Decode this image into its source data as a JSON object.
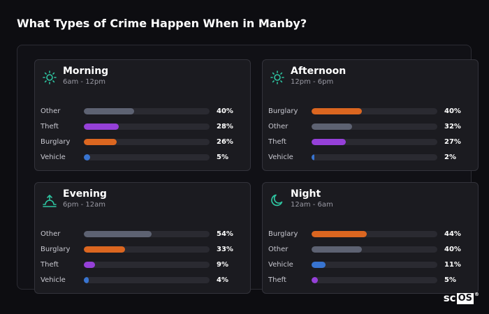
{
  "page": {
    "title": "What Types of Crime Happen When in Manby?"
  },
  "colors": {
    "Other": "#5d6272",
    "Theft": "#9540d8",
    "Burglary": "#db6620",
    "Vehicle": "#3874d0",
    "icon": "#2ec4a0"
  },
  "logo": {
    "text_sc": "sc",
    "text_os": "OS",
    "reg": "®"
  },
  "chart_data": [
    {
      "type": "bar",
      "title": "Morning",
      "subtitle": "6am - 12pm",
      "icon": "sun-icon",
      "unit": "%",
      "categories": [
        "Other",
        "Theft",
        "Burglary",
        "Vehicle"
      ],
      "values": [
        40,
        28,
        26,
        5
      ]
    },
    {
      "type": "bar",
      "title": "Afternoon",
      "subtitle": "12pm - 6pm",
      "icon": "sun-icon",
      "unit": "%",
      "categories": [
        "Burglary",
        "Other",
        "Theft",
        "Vehicle"
      ],
      "values": [
        40,
        32,
        27,
        2
      ]
    },
    {
      "type": "bar",
      "title": "Evening",
      "subtitle": "6pm - 12am",
      "icon": "sunset-icon",
      "unit": "%",
      "categories": [
        "Other",
        "Burglary",
        "Theft",
        "Vehicle"
      ],
      "values": [
        54,
        33,
        9,
        4
      ]
    },
    {
      "type": "bar",
      "title": "Night",
      "subtitle": "12am - 6am",
      "icon": "moon-icon",
      "unit": "%",
      "categories": [
        "Burglary",
        "Other",
        "Vehicle",
        "Theft"
      ],
      "values": [
        44,
        40,
        11,
        5
      ]
    }
  ]
}
